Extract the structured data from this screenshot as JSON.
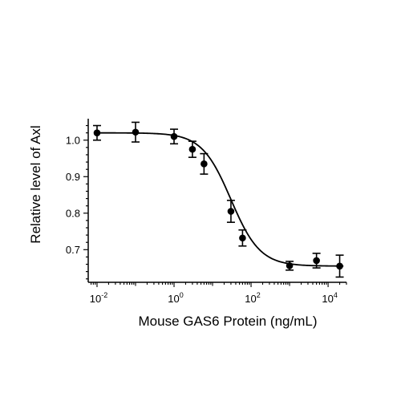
{
  "chart_data": {
    "type": "scatter",
    "xlabel": "Mouse GAS6 Protein (ng/mL)",
    "ylabel": "Relative level of Axl",
    "x_scale": "log",
    "xlim": [
      0.0065,
      30000
    ],
    "ylim": [
      0.615,
      1.05
    ],
    "x_ticks": [
      {
        "value": 0.01,
        "base": "10",
        "exp": "-2"
      },
      {
        "value": 1,
        "base": "10",
        "exp": "0"
      },
      {
        "value": 100,
        "base": "10",
        "exp": "2"
      },
      {
        "value": 10000,
        "base": "10",
        "exp": "4"
      }
    ],
    "y_ticks": [
      {
        "value": 0.7,
        "label": "0.7"
      },
      {
        "value": 0.8,
        "label": "0.8"
      },
      {
        "value": 0.9,
        "label": "0.9"
      },
      {
        "value": 1.0,
        "label": "1.0"
      }
    ],
    "grid": false,
    "points": [
      {
        "x": 0.01,
        "y": 1.02,
        "err": 0.02
      },
      {
        "x": 0.1,
        "y": 1.022,
        "err": 0.027
      },
      {
        "x": 1,
        "y": 1.01,
        "err": 0.02
      },
      {
        "x": 3,
        "y": 0.975,
        "err": 0.022
      },
      {
        "x": 6,
        "y": 0.935,
        "err": 0.028
      },
      {
        "x": 30,
        "y": 0.805,
        "err": 0.03
      },
      {
        "x": 60,
        "y": 0.732,
        "err": 0.022
      },
      {
        "x": 1000,
        "y": 0.656,
        "err": 0.012
      },
      {
        "x": 5000,
        "y": 0.67,
        "err": 0.02
      },
      {
        "x": 20000,
        "y": 0.655,
        "err": 0.03
      }
    ],
    "fit_curve": {
      "type": "4PL",
      "top": 1.02,
      "bottom": 0.655,
      "ec50": 30,
      "hill": 1.15
    }
  }
}
